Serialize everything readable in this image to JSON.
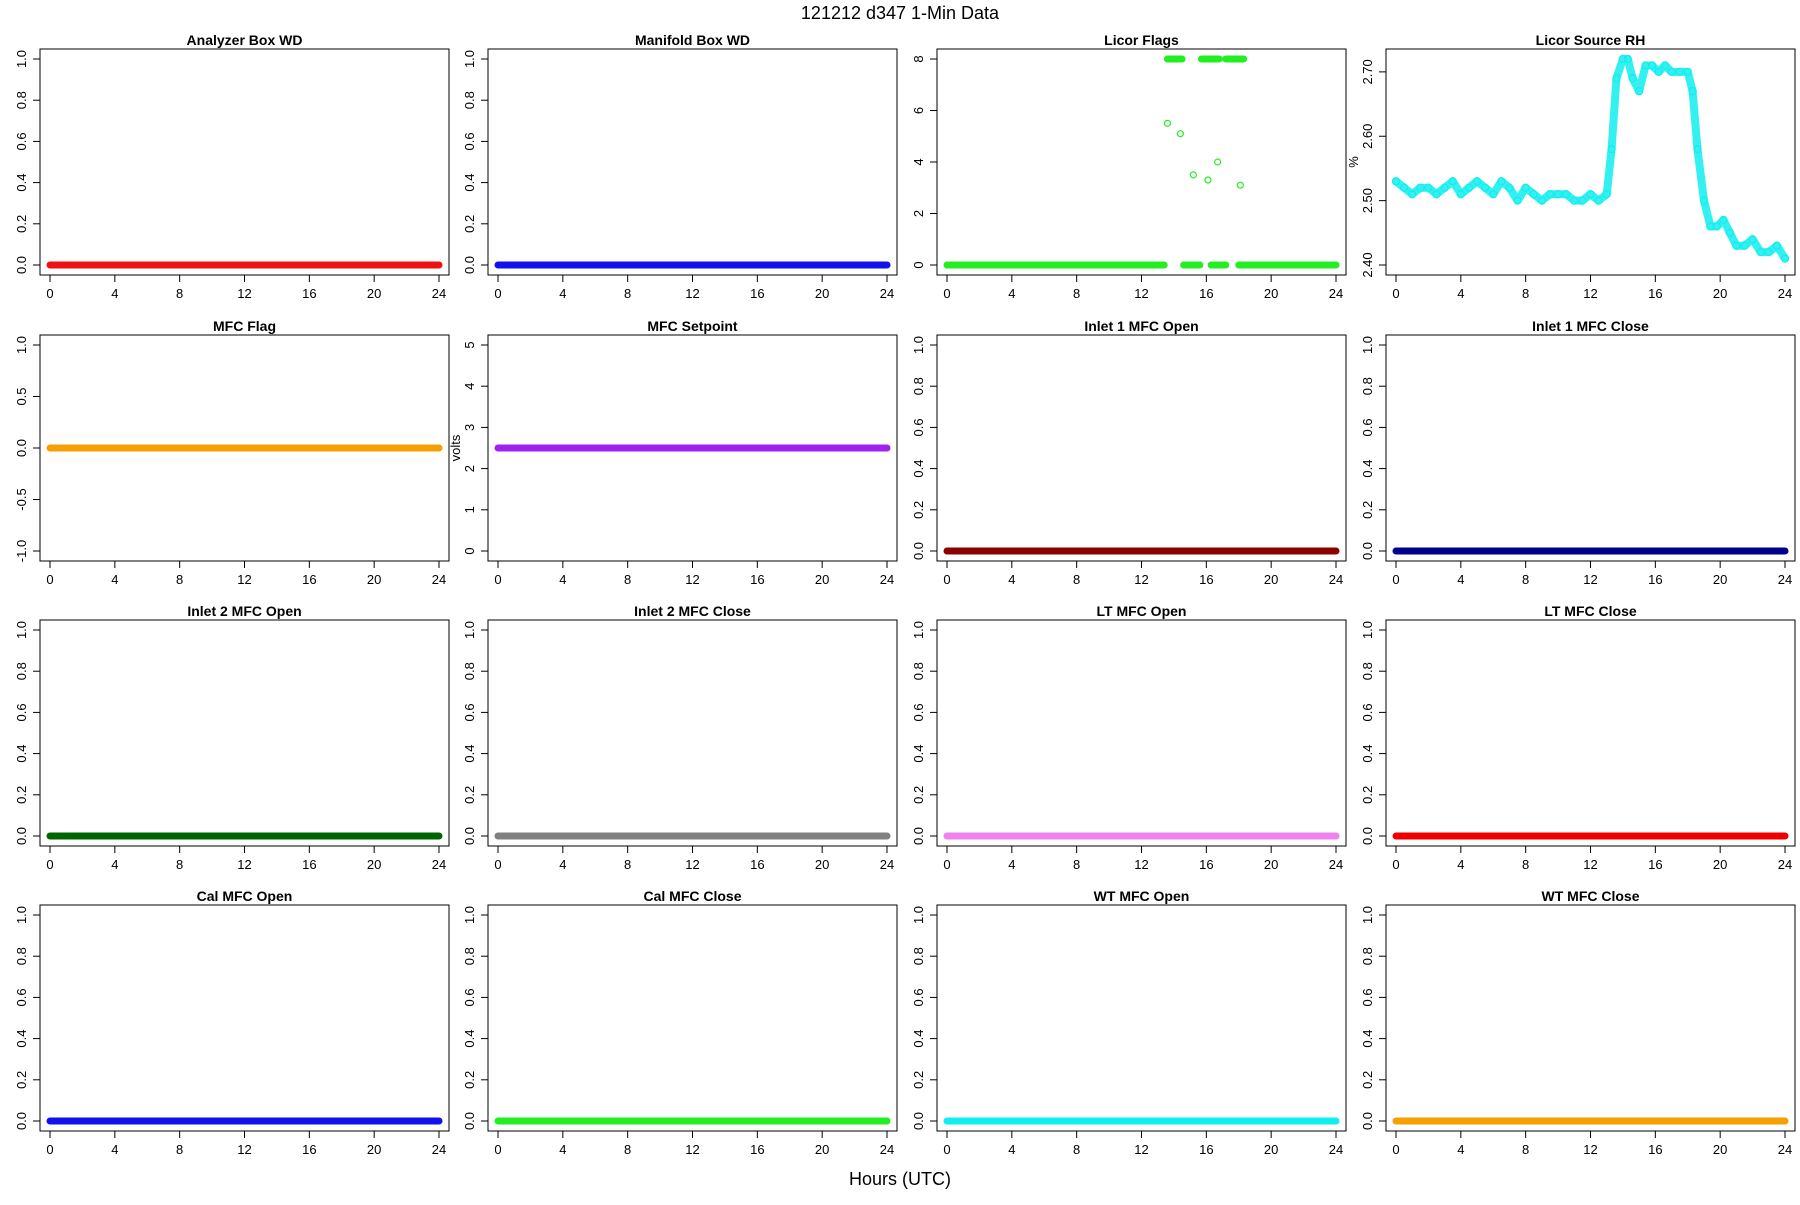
{
  "title": "121212   d347   1-Min Data",
  "xlabel": "Hours (UTC)",
  "chart_data": [
    {
      "type": "line",
      "title": "Analyzer Box WD",
      "ylabel": "",
      "xlim": [
        0,
        24
      ],
      "ylim": [
        0,
        1
      ],
      "xticks": [
        0,
        4,
        8,
        12,
        16,
        20,
        24
      ],
      "yticks": [
        "0.0",
        "0.2",
        "0.4",
        "0.6",
        "0.8",
        "1.0"
      ],
      "color": "#ee1111",
      "marker": "filled",
      "series": [
        {
          "x": [
            0,
            24
          ],
          "y": [
            0,
            0
          ]
        }
      ]
    },
    {
      "type": "line",
      "title": "Manifold Box WD",
      "ylabel": "",
      "xlim": [
        0,
        24
      ],
      "ylim": [
        0,
        1
      ],
      "xticks": [
        0,
        4,
        8,
        12,
        16,
        20,
        24
      ],
      "yticks": [
        "0.0",
        "0.2",
        "0.4",
        "0.6",
        "0.8",
        "1.0"
      ],
      "color": "#1111ee",
      "marker": "filled",
      "series": [
        {
          "x": [
            0,
            24
          ],
          "y": [
            0,
            0
          ]
        }
      ]
    },
    {
      "type": "scatter",
      "title": "Licor Flags",
      "ylabel": "",
      "xlim": [
        0,
        24
      ],
      "ylim": [
        0,
        8
      ],
      "xticks": [
        0,
        4,
        8,
        12,
        16,
        20,
        24
      ],
      "yticks": [
        "0",
        "2",
        "4",
        "6",
        "8"
      ],
      "color": "#22ee22",
      "marker": "filled",
      "series": [
        {
          "x": [
            0,
            13.4
          ],
          "y": [
            0,
            0
          ]
        },
        {
          "x": [
            14.6,
            15.6
          ],
          "y": [
            0,
            0
          ]
        },
        {
          "x": [
            16.3,
            17.2
          ],
          "y": [
            0,
            0
          ]
        },
        {
          "x": [
            18.0,
            24
          ],
          "y": [
            0,
            0
          ]
        },
        {
          "x": [
            13.6,
            14.5
          ],
          "y": [
            8,
            8
          ]
        },
        {
          "x": [
            15.7,
            16.8
          ],
          "y": [
            8,
            8
          ]
        },
        {
          "x": [
            17.2,
            18.3
          ],
          "y": [
            8,
            8
          ]
        }
      ],
      "points": [
        {
          "x": 13.6,
          "y": 5.5
        },
        {
          "x": 14.4,
          "y": 5.1
        },
        {
          "x": 15.2,
          "y": 3.5
        },
        {
          "x": 16.1,
          "y": 3.3
        },
        {
          "x": 16.7,
          "y": 4.0
        },
        {
          "x": 18.1,
          "y": 3.1
        }
      ]
    },
    {
      "type": "scatter",
      "title": "Licor Source RH",
      "ylabel": "%",
      "xlim": [
        0,
        24
      ],
      "ylim": [
        2.4,
        2.72
      ],
      "xticks": [
        0,
        4,
        8,
        12,
        16,
        20,
        24
      ],
      "yticks": [
        "2.40",
        "2.50",
        "2.60",
        "2.70"
      ],
      "color": "#11eeee",
      "marker": "open",
      "series": [
        {
          "x": [
            0,
            0.5,
            1,
            1.5,
            2,
            2.5,
            3,
            3.5,
            4,
            4.5,
            5,
            5.5,
            6,
            6.5,
            7,
            7.5,
            8,
            8.5,
            9,
            9.5,
            10,
            10.5,
            11,
            11.5,
            12,
            12.5,
            13,
            13.3,
            13.6,
            14,
            14.3,
            14.6,
            15,
            15.4,
            15.8,
            16.2,
            16.6,
            17,
            17.5,
            18,
            18.3,
            18.6,
            19,
            19.4,
            19.8,
            20.2,
            20.6,
            21,
            21.5,
            22,
            22.5,
            23,
            23.5,
            24
          ],
          "y": [
            2.53,
            2.52,
            2.51,
            2.52,
            2.52,
            2.51,
            2.52,
            2.53,
            2.51,
            2.52,
            2.53,
            2.52,
            2.51,
            2.53,
            2.52,
            2.5,
            2.52,
            2.51,
            2.5,
            2.51,
            2.51,
            2.51,
            2.5,
            2.5,
            2.51,
            2.5,
            2.51,
            2.58,
            2.69,
            2.72,
            2.72,
            2.69,
            2.67,
            2.71,
            2.71,
            2.7,
            2.71,
            2.7,
            2.7,
            2.7,
            2.67,
            2.58,
            2.5,
            2.46,
            2.46,
            2.47,
            2.45,
            2.43,
            2.43,
            2.44,
            2.42,
            2.42,
            2.43,
            2.41
          ]
        }
      ]
    },
    {
      "type": "line",
      "title": "MFC Flag",
      "ylabel": "",
      "xlim": [
        0,
        24
      ],
      "ylim": [
        -1,
        1
      ],
      "xticks": [
        0,
        4,
        8,
        12,
        16,
        20,
        24
      ],
      "yticks": [
        "-1.0",
        "-0.5",
        "0.0",
        "0.5",
        "1.0"
      ],
      "color": "#f5a000",
      "marker": "filled",
      "series": [
        {
          "x": [
            0,
            24
          ],
          "y": [
            0,
            0
          ]
        }
      ]
    },
    {
      "type": "line",
      "title": "MFC Setpoint",
      "ylabel": "volts",
      "xlim": [
        0,
        24
      ],
      "ylim": [
        0,
        5
      ],
      "xticks": [
        0,
        4,
        8,
        12,
        16,
        20,
        24
      ],
      "yticks": [
        "0",
        "1",
        "2",
        "3",
        "4",
        "5"
      ],
      "color": "#a020f0",
      "marker": "filled",
      "series": [
        {
          "x": [
            0,
            24
          ],
          "y": [
            2.5,
            2.5
          ]
        }
      ]
    },
    {
      "type": "line",
      "title": "Inlet 1 MFC Open",
      "ylabel": "",
      "xlim": [
        0,
        24
      ],
      "ylim": [
        0,
        1
      ],
      "xticks": [
        0,
        4,
        8,
        12,
        16,
        20,
        24
      ],
      "yticks": [
        "0.0",
        "0.2",
        "0.4",
        "0.6",
        "0.8",
        "1.0"
      ],
      "color": "#8b0000",
      "marker": "filled",
      "series": [
        {
          "x": [
            0,
            24
          ],
          "y": [
            0,
            0
          ]
        }
      ]
    },
    {
      "type": "line",
      "title": "Inlet 1 MFC Close",
      "ylabel": "",
      "xlim": [
        0,
        24
      ],
      "ylim": [
        0,
        1
      ],
      "xticks": [
        0,
        4,
        8,
        12,
        16,
        20,
        24
      ],
      "yticks": [
        "0.0",
        "0.2",
        "0.4",
        "0.6",
        "0.8",
        "1.0"
      ],
      "color": "#00008b",
      "marker": "filled",
      "series": [
        {
          "x": [
            0,
            24
          ],
          "y": [
            0,
            0
          ]
        }
      ]
    },
    {
      "type": "line",
      "title": "Inlet 2 MFC Open",
      "ylabel": "",
      "xlim": [
        0,
        24
      ],
      "ylim": [
        0,
        1
      ],
      "xticks": [
        0,
        4,
        8,
        12,
        16,
        20,
        24
      ],
      "yticks": [
        "0.0",
        "0.2",
        "0.4",
        "0.6",
        "0.8",
        "1.0"
      ],
      "color": "#006400",
      "marker": "filled",
      "series": [
        {
          "x": [
            0,
            24
          ],
          "y": [
            0,
            0
          ]
        }
      ]
    },
    {
      "type": "line",
      "title": "Inlet 2 MFC Close",
      "ylabel": "",
      "xlim": [
        0,
        24
      ],
      "ylim": [
        0,
        1
      ],
      "xticks": [
        0,
        4,
        8,
        12,
        16,
        20,
        24
      ],
      "yticks": [
        "0.0",
        "0.2",
        "0.4",
        "0.6",
        "0.8",
        "1.0"
      ],
      "color": "#808080",
      "marker": "filled",
      "series": [
        {
          "x": [
            0,
            24
          ],
          "y": [
            0,
            0
          ]
        }
      ]
    },
    {
      "type": "line",
      "title": "LT MFC Open",
      "ylabel": "",
      "xlim": [
        0,
        24
      ],
      "ylim": [
        0,
        1
      ],
      "xticks": [
        0,
        4,
        8,
        12,
        16,
        20,
        24
      ],
      "yticks": [
        "0.0",
        "0.2",
        "0.4",
        "0.6",
        "0.8",
        "1.0"
      ],
      "color": "#ee82ee",
      "marker": "filled",
      "series": [
        {
          "x": [
            0,
            24
          ],
          "y": [
            0,
            0
          ]
        }
      ]
    },
    {
      "type": "line",
      "title": "LT MFC Close",
      "ylabel": "",
      "xlim": [
        0,
        24
      ],
      "ylim": [
        0,
        1
      ],
      "xticks": [
        0,
        4,
        8,
        12,
        16,
        20,
        24
      ],
      "yticks": [
        "0.0",
        "0.2",
        "0.4",
        "0.6",
        "0.8",
        "1.0"
      ],
      "color": "#ee0000",
      "marker": "filled",
      "series": [
        {
          "x": [
            0,
            24
          ],
          "y": [
            0,
            0
          ]
        }
      ]
    },
    {
      "type": "line",
      "title": "Cal MFC Open",
      "ylabel": "",
      "xlim": [
        0,
        24
      ],
      "ylim": [
        0,
        1
      ],
      "xticks": [
        0,
        4,
        8,
        12,
        16,
        20,
        24
      ],
      "yticks": [
        "0.0",
        "0.2",
        "0.4",
        "0.6",
        "0.8",
        "1.0"
      ],
      "color": "#1111ee",
      "marker": "filled",
      "series": [
        {
          "x": [
            0,
            24
          ],
          "y": [
            0,
            0
          ]
        }
      ]
    },
    {
      "type": "line",
      "title": "Cal MFC Close",
      "ylabel": "",
      "xlim": [
        0,
        24
      ],
      "ylim": [
        0,
        1
      ],
      "xticks": [
        0,
        4,
        8,
        12,
        16,
        20,
        24
      ],
      "yticks": [
        "0.0",
        "0.2",
        "0.4",
        "0.6",
        "0.8",
        "1.0"
      ],
      "color": "#22ee22",
      "marker": "filled",
      "series": [
        {
          "x": [
            0,
            24
          ],
          "y": [
            0,
            0
          ]
        }
      ]
    },
    {
      "type": "line",
      "title": "WT MFC Open",
      "ylabel": "",
      "xlim": [
        0,
        24
      ],
      "ylim": [
        0,
        1
      ],
      "xticks": [
        0,
        4,
        8,
        12,
        16,
        20,
        24
      ],
      "yticks": [
        "0.0",
        "0.2",
        "0.4",
        "0.6",
        "0.8",
        "1.0"
      ],
      "color": "#11eeee",
      "marker": "filled",
      "series": [
        {
          "x": [
            0,
            24
          ],
          "y": [
            0,
            0
          ]
        }
      ]
    },
    {
      "type": "line",
      "title": "WT MFC Close",
      "ylabel": "",
      "xlim": [
        0,
        24
      ],
      "ylim": [
        0,
        1
      ],
      "xticks": [
        0,
        4,
        8,
        12,
        16,
        20,
        24
      ],
      "yticks": [
        "0.0",
        "0.2",
        "0.4",
        "0.6",
        "0.8",
        "1.0"
      ],
      "color": "#f5a000",
      "marker": "filled",
      "series": [
        {
          "x": [
            0,
            24
          ],
          "y": [
            0,
            0
          ]
        }
      ]
    }
  ]
}
